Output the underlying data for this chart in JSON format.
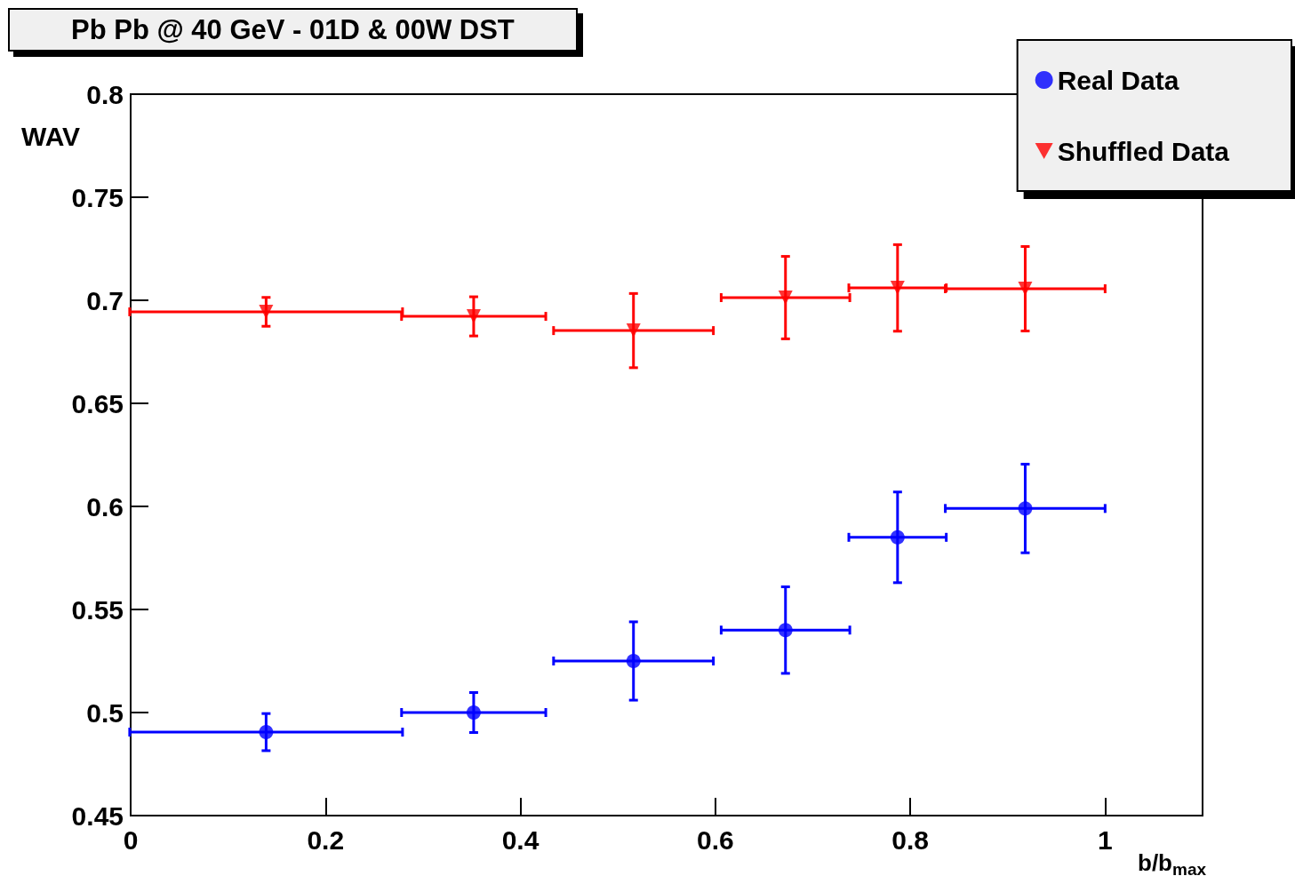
{
  "chart_data": {
    "type": "scatter",
    "title": "Pb Pb @ 40 GeV - 01D & 00W DST",
    "xlabel": "b/b$_{max}$",
    "ylabel": "WAV",
    "x": [
      0.139,
      0.352,
      0.516,
      0.672,
      0.787,
      0.918
    ],
    "xlim": [
      0,
      1.1
    ],
    "xticks": [
      0,
      0.2,
      0.4,
      0.6,
      0.8,
      1
    ],
    "ylim": [
      0.45,
      0.8
    ],
    "yticks": [
      0.45,
      0.5,
      0.55,
      0.6,
      0.65,
      0.7,
      0.75,
      0.8
    ],
    "grid": false,
    "legend": "top right",
    "series": [
      {
        "name": "Real Data",
        "color": "#0000ff",
        "marker": "circle",
        "values": [
          0.4905,
          0.5,
          0.525,
          0.54,
          0.585,
          0.599
        ],
        "errors": [
          0.009,
          0.0097,
          0.019,
          0.021,
          0.022,
          0.0215
        ],
        "xerrors": [
          0.14,
          0.074,
          0.082,
          0.066,
          0.05,
          0.082
        ]
      },
      {
        "name": "Shuffled Data",
        "color": "#ff0000",
        "marker": "triangle",
        "values": [
          0.6944,
          0.6922,
          0.6853,
          0.7013,
          0.706,
          0.7056
        ],
        "errors": [
          0.007,
          0.0095,
          0.018,
          0.02,
          0.021,
          0.0205
        ],
        "xerrors": [
          0.14,
          0.074,
          0.082,
          0.066,
          0.05,
          0.082
        ]
      }
    ]
  }
}
